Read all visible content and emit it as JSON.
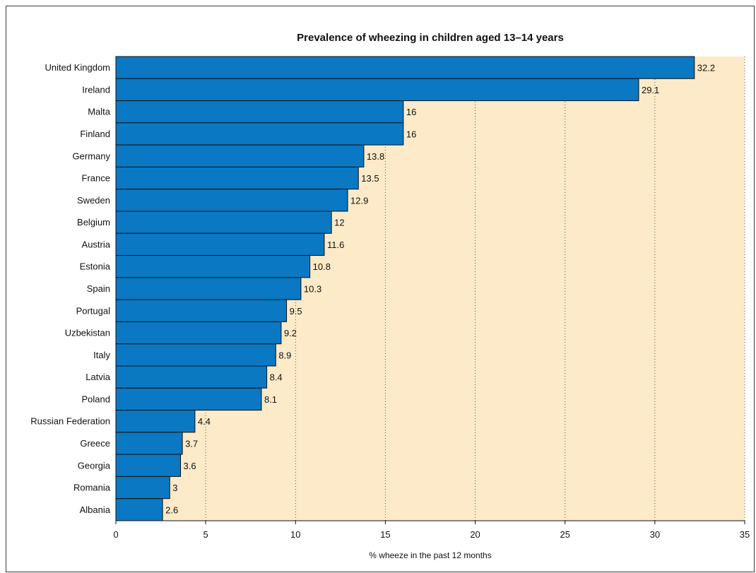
{
  "chart_data": {
    "type": "bar",
    "orientation": "horizontal",
    "title": "Prevalence of wheezing in children aged 13–14 years",
    "xlabel": "% wheeze in the past 12 months",
    "ylabel": "",
    "xlim": [
      0,
      35
    ],
    "xticks": [
      0,
      5,
      10,
      15,
      20,
      25,
      30,
      35
    ],
    "grid": "vertical dotted",
    "categories": [
      "United Kingdom",
      "Ireland",
      "Malta",
      "Finland",
      "Germany",
      "France",
      "Sweden",
      "Belgium",
      "Austria",
      "Estonia",
      "Spain",
      "Portugal",
      "Uzbekistan",
      "Italy",
      "Latvia",
      "Poland",
      "Russian Federation",
      "Greece",
      "Georgia",
      "Romania",
      "Albania"
    ],
    "values": [
      32.2,
      29.1,
      16,
      16,
      13.8,
      13.5,
      12.9,
      12,
      11.6,
      10.8,
      10.3,
      9.5,
      9.2,
      8.9,
      8.4,
      8.1,
      4.4,
      3.7,
      3.6,
      3,
      2.6
    ],
    "value_labels": [
      "32.2",
      "29.1",
      "16",
      "16",
      "13.8",
      "13.5",
      "12.9",
      "12",
      "11.6",
      "10.8",
      "10.3",
      "9.5",
      "9.2",
      "8.9",
      "8.4",
      "8.1",
      "4.4",
      "3.7",
      "3.6",
      "3",
      "2.6"
    ],
    "colors": {
      "bar": "#0a78c2",
      "bar_edge": "#111111",
      "plot_background": "#fdeac8",
      "grid": "#555555"
    }
  }
}
